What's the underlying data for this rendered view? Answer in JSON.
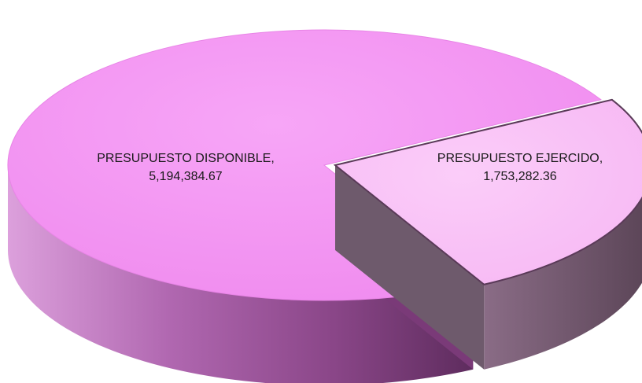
{
  "chart_data": {
    "type": "pie",
    "style": "3d",
    "slices": [
      {
        "label": "PRESUPUESTO DISPONIBLE",
        "value": 5194384.67,
        "value_text": "5,194,384.67",
        "color": "#f59cf5",
        "side_color": "#9c559a"
      },
      {
        "label": "PRESUPUESTO EJERCIDO",
        "value": 1753282.36,
        "value_text": "1,753,282.36",
        "color": "#f9c4f6",
        "side_color": "#7c6178"
      }
    ],
    "legend": "none",
    "data_labels": "category, value"
  }
}
